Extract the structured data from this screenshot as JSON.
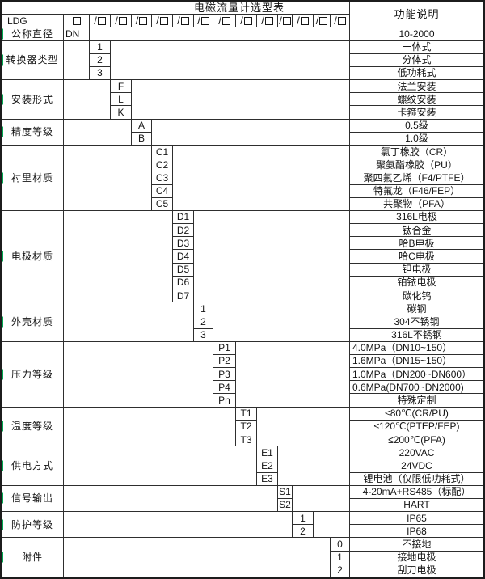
{
  "table": {
    "title": "电磁流量计选型表",
    "right_header": "功能说明",
    "model_row": {
      "prefix_label": "LDG",
      "base_box": "box",
      "slash_box_count": 13
    },
    "diameter_row": {
      "label": "公称直径",
      "code": "DN",
      "desc": "10-2000"
    },
    "sections": [
      {
        "label": "转换器类型",
        "col": 3,
        "items": [
          {
            "code": "1",
            "desc": "一体式"
          },
          {
            "code": "2",
            "desc": "分体式"
          },
          {
            "code": "3",
            "desc": "低功耗式"
          }
        ]
      },
      {
        "label": "安装形式",
        "col": 4,
        "items": [
          {
            "code": "F",
            "desc": "法兰安装"
          },
          {
            "code": "L",
            "desc": "螺纹安装"
          },
          {
            "code": "K",
            "desc": "卡箍安装"
          }
        ]
      },
      {
        "label": "精度等级",
        "col": 5,
        "items": [
          {
            "code": "A",
            "desc": "0.5级"
          },
          {
            "code": "B",
            "desc": "1.0级"
          }
        ]
      },
      {
        "label": "衬里材质",
        "col": 6,
        "items": [
          {
            "code": "C1",
            "desc": "氯丁橡胶（CR）"
          },
          {
            "code": "C2",
            "desc": "聚氨酯橡胶（PU）"
          },
          {
            "code": "C3",
            "desc": "聚四氟乙烯（F4/PTFE）"
          },
          {
            "code": "C4",
            "desc": "特氟龙（F46/FEP）"
          },
          {
            "code": "C5",
            "desc": "共聚物（PFA）"
          }
        ]
      },
      {
        "label": "电极材质",
        "col": 7,
        "items": [
          {
            "code": "D1",
            "desc": "316L电极"
          },
          {
            "code": "D2",
            "desc": "钛合金"
          },
          {
            "code": "D3",
            "desc": "哈B电极"
          },
          {
            "code": "D4",
            "desc": "哈C电极"
          },
          {
            "code": "D5",
            "desc": "钽电极"
          },
          {
            "code": "D6",
            "desc": "铂铱电极"
          },
          {
            "code": "D7",
            "desc": "碳化钨"
          }
        ]
      },
      {
        "label": "外壳材质",
        "col": 8,
        "items": [
          {
            "code": "1",
            "desc": "碳钢"
          },
          {
            "code": "2",
            "desc": "304不锈钢"
          },
          {
            "code": "3",
            "desc": "316L不锈钢"
          }
        ]
      },
      {
        "label": "压力等级",
        "col": 9,
        "items": [
          {
            "code": "P1",
            "desc": "4.0MPa（DN10~150）",
            "align": "left"
          },
          {
            "code": "P2",
            "desc": "1.6MPa（DN15~150）",
            "align": "left"
          },
          {
            "code": "P3",
            "desc": "1.0MPa（DN200~DN600）",
            "align": "left"
          },
          {
            "code": "P4",
            "desc": "0.6MPa(DN700~DN2000)",
            "align": "left"
          },
          {
            "code": "Pn",
            "desc": "特殊定制"
          }
        ]
      },
      {
        "label": "温度等级",
        "col": 10,
        "items": [
          {
            "code": "T1",
            "desc": "≤80℃(CR/PU)"
          },
          {
            "code": "T2",
            "desc": "≤120℃(PTEP/FEP)"
          },
          {
            "code": "T3",
            "desc": "≤200℃(PFA)"
          }
        ]
      },
      {
        "label": "供电方式",
        "col": 11,
        "items": [
          {
            "code": "E1",
            "desc": "220VAC"
          },
          {
            "code": "E2",
            "desc": "24VDC"
          },
          {
            "code": "E3",
            "desc": "锂电池（仅限低功耗式）"
          }
        ]
      },
      {
        "label": "信号输出",
        "col": 12,
        "items": [
          {
            "code": "S1",
            "desc": "4-20mA+RS485（标配）"
          },
          {
            "code": "S2",
            "desc": "HART"
          }
        ]
      },
      {
        "label": "防护等级",
        "col": 13,
        "items": [
          {
            "code": "1",
            "desc": "IP65"
          },
          {
            "code": "2",
            "desc": "IP68"
          }
        ]
      },
      {
        "label": "附件",
        "col": 15,
        "items": [
          {
            "code": "0",
            "desc": "不接地"
          },
          {
            "code": "1",
            "desc": "接地电极"
          },
          {
            "code": "2",
            "desc": "刮刀电极"
          }
        ]
      }
    ]
  },
  "colors": {
    "marker_green": "#00a651",
    "grid_line": "#2e2e2e"
  }
}
